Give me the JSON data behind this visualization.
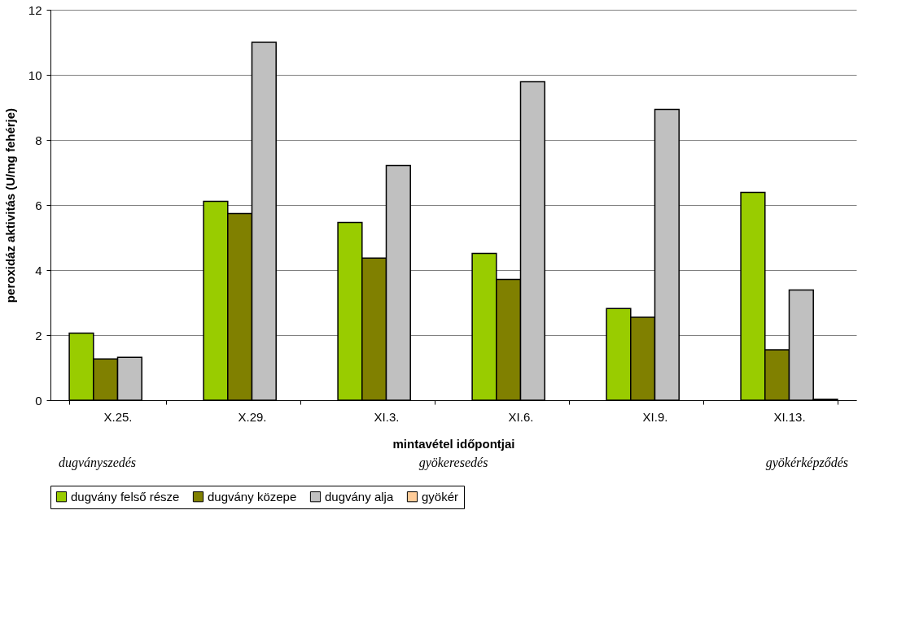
{
  "chart_data": {
    "type": "bar",
    "xlabel": "mintavétel időpontjai",
    "ylabel": "peroxidáz aktivitás (U/mg fehérje)",
    "categories": [
      "X.25.",
      "X.29.",
      "XI.3.",
      "XI.6.",
      "XI.9.",
      "XI.13."
    ],
    "series": [
      {
        "name": "dugvány felső része",
        "color": "#99cc00",
        "values": [
          2.06,
          6.11,
          5.46,
          4.51,
          2.82,
          6.39
        ]
      },
      {
        "name": "dugvány közepe",
        "color": "#808000",
        "values": [
          1.27,
          5.74,
          4.37,
          3.71,
          2.55,
          1.55
        ]
      },
      {
        "name": "dugvány alja",
        "color": "#c0c0c0",
        "values": [
          1.32,
          11.0,
          7.21,
          9.79,
          8.94,
          3.39
        ]
      },
      {
        "name": "gyökér",
        "color": "#ffcc99",
        "values": [
          null,
          null,
          null,
          null,
          null,
          0.03
        ]
      }
    ],
    "ylim": [
      0,
      12
    ],
    "yticks": [
      0,
      2,
      4,
      6,
      8,
      10,
      12
    ],
    "grid": "y",
    "legend": "bottom",
    "annotations": [
      "dugványszedés",
      "gyökeresedés",
      "gyökérképződés"
    ]
  }
}
